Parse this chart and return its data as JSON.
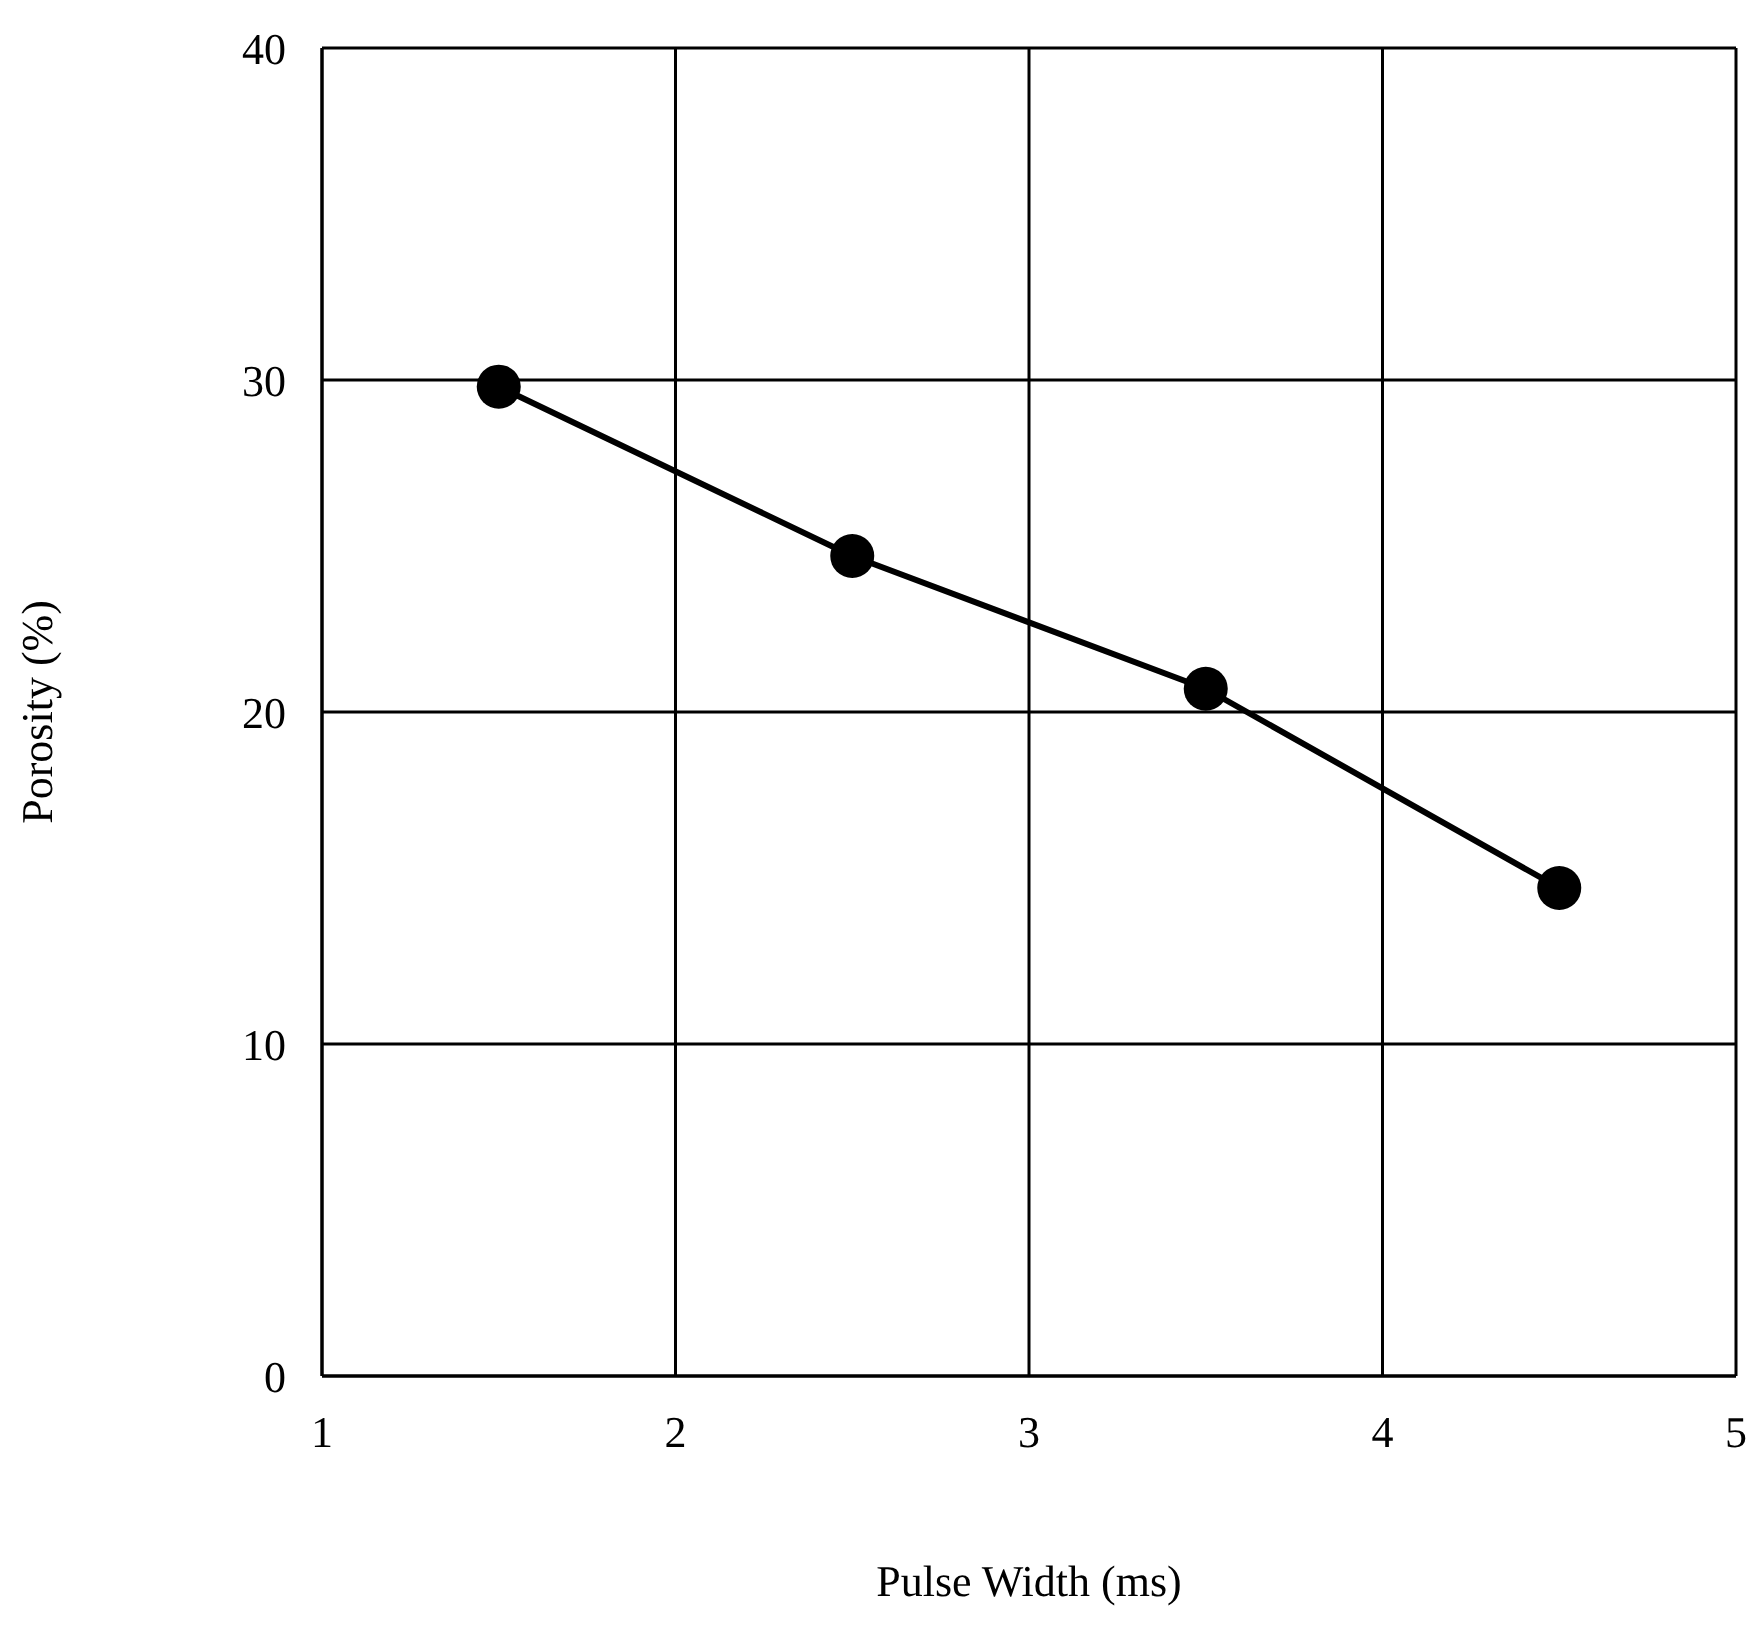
{
  "chart_data": {
    "type": "line",
    "xlabel": "Pulse Width (ms)",
    "ylabel": "Porosity (%)",
    "x": [
      1.5,
      2.5,
      3.5,
      4.5
    ],
    "series": [
      {
        "color": "#000000",
        "values": [
          29.8,
          24.7,
          20.7,
          14.7
        ]
      }
    ],
    "xlim": [
      1,
      5
    ],
    "xticks": [
      1,
      2,
      3,
      4,
      5
    ],
    "ylim": [
      0,
      40
    ],
    "yticks": [
      0,
      10,
      20,
      30,
      40
    ],
    "grid": true,
    "marker": "circle",
    "line_style": "solid",
    "legend": false
  }
}
